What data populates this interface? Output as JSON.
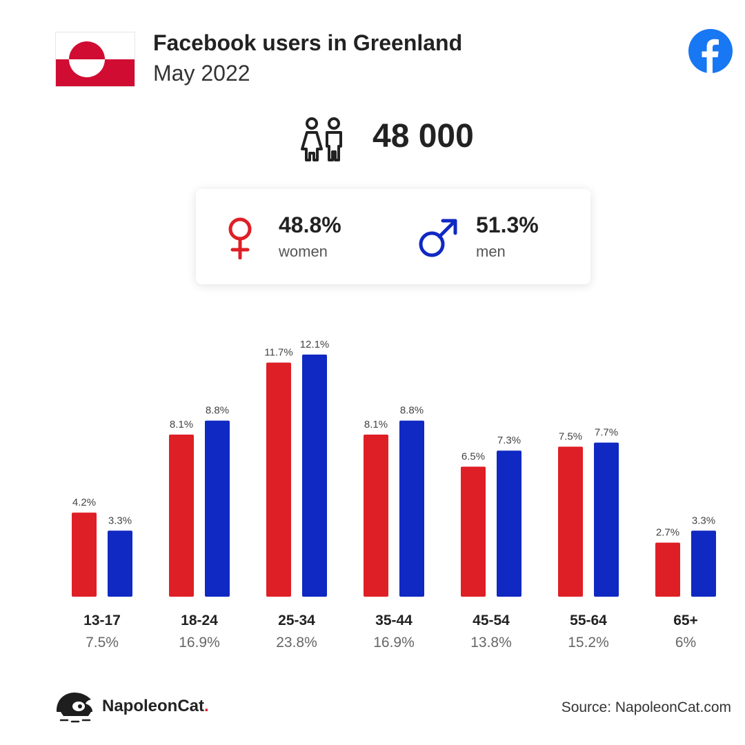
{
  "header": {
    "title": "Facebook users in Greenland",
    "subtitle": "May 2022"
  },
  "icons": {
    "flag": "greenland-flag-icon",
    "platform": "facebook-logo-icon",
    "users": "users-icon",
    "female": "female-symbol-icon",
    "male": "male-symbol-icon",
    "brand_logo": "napoleoncat-logo-icon"
  },
  "total": {
    "value": "48 000"
  },
  "gender": {
    "women": {
      "percent": "48.8%",
      "label": "women"
    },
    "men": {
      "percent": "51.3%",
      "label": "men"
    }
  },
  "colors": {
    "women": "#df1f26",
    "men": "#1029c2",
    "facebook": "#1877f2",
    "flag_red": "#d00c33"
  },
  "chart_data": {
    "type": "bar",
    "categories": [
      "13-17",
      "18-24",
      "25-34",
      "35-44",
      "45-54",
      "55-64",
      "65+"
    ],
    "category_totals": [
      "7.5%",
      "16.9%",
      "23.8%",
      "16.9%",
      "13.8%",
      "15.2%",
      "6%"
    ],
    "series": [
      {
        "key": "women",
        "values": [
          4.2,
          8.1,
          11.7,
          8.1,
          6.5,
          7.5,
          2.7
        ],
        "labels": [
          "4.2%",
          "8.1%",
          "11.7%",
          "8.1%",
          "6.5%",
          "7.5%",
          "2.7%"
        ]
      },
      {
        "key": "men",
        "values": [
          3.3,
          8.8,
          12.1,
          8.8,
          7.3,
          7.7,
          3.3
        ],
        "labels": [
          "3.3%",
          "8.8%",
          "12.1%",
          "8.8%",
          "7.3%",
          "7.7%",
          "3.3%"
        ]
      }
    ],
    "ylim": [
      0,
      12.1
    ]
  },
  "footer": {
    "brand_name": "NapoleonCat",
    "brand_dot": ".",
    "source": "Source: NapoleonCat.com"
  }
}
